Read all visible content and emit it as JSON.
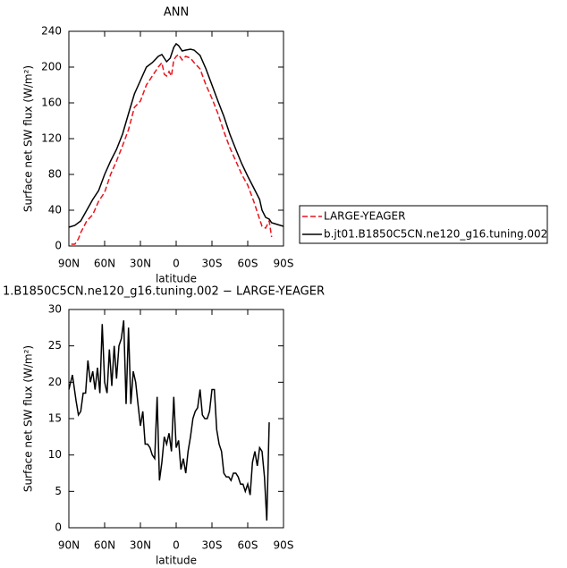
{
  "chart_data": [
    {
      "type": "line",
      "title": "ANN",
      "ylabel": "Surface net SW flux (W/m²)",
      "xlabel": "latitude",
      "xlim": [
        90,
        -90
      ],
      "ylim": [
        0,
        240
      ],
      "xticks": [
        {
          "value": 90,
          "label": "90N"
        },
        {
          "value": 60,
          "label": "60N"
        },
        {
          "value": 30,
          "label": "30N"
        },
        0,
        {
          "value": -30,
          "label": "30S"
        },
        {
          "value": -60,
          "label": "60S"
        },
        {
          "value": -90,
          "label": "90S"
        }
      ],
      "yticks": [
        0,
        40,
        80,
        120,
        160,
        200,
        240
      ],
      "legend": "right",
      "series": [
        {
          "name": "LARGE-YEAGER",
          "color": "#e8141c",
          "dash": true,
          "x": [
            88,
            85,
            82,
            80,
            75,
            70,
            65,
            60,
            55,
            50,
            45,
            40,
            35,
            30,
            25,
            20,
            15,
            12,
            10,
            8,
            6,
            4,
            2,
            0,
            -2,
            -5,
            -8,
            -12,
            -15,
            -20,
            -25,
            -30,
            -35,
            -40,
            -45,
            -50,
            -55,
            -60,
            -65,
            -70,
            -72,
            -75,
            -78,
            -80
          ],
          "values": [
            2,
            2,
            8,
            15,
            28,
            35,
            50,
            60,
            80,
            95,
            112,
            130,
            155,
            162,
            180,
            190,
            200,
            205,
            192,
            190,
            195,
            190,
            208,
            212,
            214,
            208,
            212,
            210,
            205,
            198,
            180,
            165,
            148,
            128,
            110,
            95,
            80,
            68,
            50,
            30,
            22,
            20,
            28,
            10
          ]
        },
        {
          "name": "b.jt01.B1850C5CN.ne120_g16.tuning.002",
          "color": "#000000",
          "dash": false,
          "x": [
            90,
            85,
            80,
            75,
            70,
            65,
            60,
            55,
            50,
            45,
            40,
            35,
            30,
            25,
            20,
            15,
            12,
            10,
            8,
            5,
            2,
            0,
            -2,
            -5,
            -8,
            -12,
            -15,
            -20,
            -25,
            -30,
            -35,
            -40,
            -45,
            -50,
            -55,
            -60,
            -65,
            -70,
            -72,
            -75,
            -78,
            -80,
            -85,
            -90
          ],
          "values": [
            21,
            23,
            28,
            40,
            52,
            62,
            80,
            95,
            108,
            125,
            148,
            170,
            185,
            200,
            205,
            212,
            214,
            210,
            206,
            210,
            222,
            226,
            224,
            218,
            219,
            220,
            219,
            213,
            198,
            180,
            162,
            145,
            125,
            108,
            92,
            78,
            65,
            52,
            40,
            32,
            30,
            26,
            24,
            22
          ]
        }
      ]
    },
    {
      "type": "line",
      "title": "1.B1850C5CN.ne120_g16.tuning.002 − LARGE-YEAGER",
      "ylabel": "Surface net SW flux (W/m²)",
      "xlabel": "latitude",
      "xlim": [
        90,
        -90
      ],
      "ylim": [
        0,
        30
      ],
      "xticks": [
        {
          "value": 90,
          "label": "90N"
        },
        {
          "value": 60,
          "label": "60N"
        },
        {
          "value": 30,
          "label": "30N"
        },
        0,
        {
          "value": -30,
          "label": "30S"
        },
        {
          "value": -60,
          "label": "60S"
        },
        {
          "value": -90,
          "label": "90S"
        }
      ],
      "yticks": [
        0,
        5,
        10,
        15,
        20,
        25,
        30
      ],
      "color": "#000000",
      "x": [
        90,
        87,
        84,
        82,
        80,
        78,
        76,
        74,
        72,
        70,
        68,
        66,
        64,
        62,
        60,
        58,
        56,
        54,
        52,
        50,
        48,
        46,
        44,
        42,
        40,
        38,
        36,
        34,
        32,
        30,
        28,
        26,
        24,
        22,
        20,
        18,
        16,
        14,
        12,
        10,
        8,
        6,
        4,
        2,
        0,
        -2,
        -4,
        -6,
        -8,
        -10,
        -12,
        -14,
        -16,
        -18,
        -20,
        -22,
        -24,
        -26,
        -28,
        -30,
        -32,
        -34,
        -36,
        -38,
        -40,
        -42,
        -44,
        -46,
        -48,
        -50,
        -52,
        -54,
        -56,
        -58,
        -60,
        -62,
        -64,
        -66,
        -68,
        -70,
        -72,
        -74,
        -76,
        -78
      ],
      "values": [
        19,
        21,
        17.5,
        15.5,
        16,
        18.5,
        18.5,
        23,
        20,
        21.5,
        19,
        22,
        18.5,
        28,
        20,
        18.5,
        24.5,
        19.5,
        25,
        20.5,
        25,
        26,
        28.5,
        17,
        27.5,
        17,
        21.5,
        20,
        17,
        14,
        16,
        11.5,
        11.5,
        11,
        10,
        9.5,
        18,
        6.5,
        9,
        12.5,
        11.5,
        13,
        10.5,
        18,
        11,
        12,
        8,
        9.5,
        7.5,
        10.5,
        12.5,
        15,
        16,
        16.5,
        19,
        15.5,
        15,
        15,
        16,
        19,
        19,
        13.5,
        11.5,
        10.5,
        7.5,
        7,
        7,
        6.5,
        7.5,
        7.5,
        7,
        6,
        6,
        5,
        6,
        4.5,
        9,
        10.5,
        8.5,
        11,
        10.5,
        7,
        1,
        14.5
      ]
    }
  ]
}
